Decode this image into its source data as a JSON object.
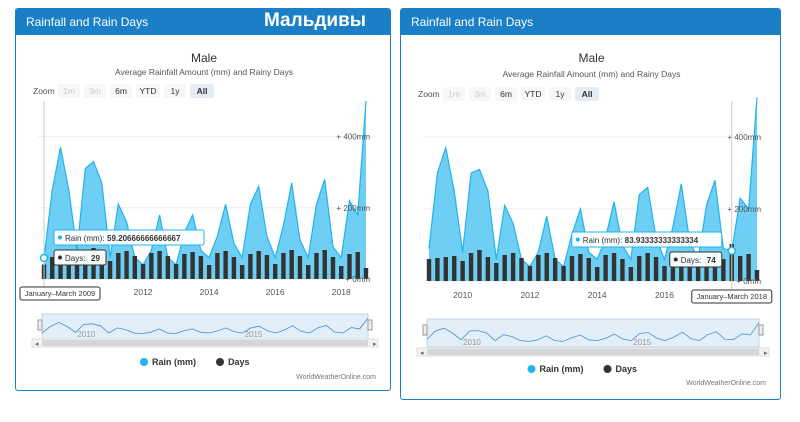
{
  "overlay_title": "Мальдивы",
  "colors": {
    "header": "#1a7fc7",
    "rain": "#21b4ec",
    "rain_fill": "#5fc9f2",
    "days": "#333333",
    "navigator_fill": "#cfe2f3"
  },
  "panels": [
    {
      "header": "Rainfall and Rain Days",
      "title": "Male",
      "subtitle": "Average Rainfall Amount (mm) and Rainy Days",
      "zoom_label": "Zoom",
      "zoom_buttons": [
        "1m",
        "3m",
        "6m",
        "YTD",
        "1y",
        "All"
      ],
      "active_zoom": "All",
      "y_ticks": [
        "+ 400mm",
        "+ 200mm",
        "+ 0mm"
      ],
      "x_ticks": [
        "2010",
        "2012",
        "2014",
        "2016",
        "2018"
      ],
      "nav_ticks": [
        "2010",
        "2015"
      ],
      "tooltip": {
        "rain_label": "Rain (mm):",
        "rain_value": "59.20666666666667",
        "days_label": "Days:",
        "days_value": "29",
        "date": "January–March 2009"
      },
      "legend": [
        "Rain (mm)",
        "Days"
      ],
      "credit": "WorldWeatherOnline.com"
    },
    {
      "header": "Rainfall and Rain Days",
      "title": "Male",
      "subtitle": "Average Rainfall Amount (mm) and Rainy Days",
      "zoom_label": "Zoom",
      "zoom_buttons": [
        "1m",
        "3m",
        "6m",
        "YTD",
        "1y",
        "All"
      ],
      "active_zoom": "All",
      "y_ticks": [
        "+ 400mm",
        "+ 200mm",
        "+ 0mm"
      ],
      "x_ticks": [
        "2010",
        "2012",
        "2014",
        "2016",
        "2018"
      ],
      "nav_ticks": [
        "2010",
        "2015"
      ],
      "tooltip": {
        "rain_label": "Rain (mm):",
        "rain_value": "83.93333333333334",
        "days_label": "Days:",
        "days_value": "74",
        "date": "January–March 2018"
      },
      "legend": [
        "Rain (mm)",
        "Days"
      ],
      "credit": "WorldWeatherOnline.com"
    }
  ],
  "chart_data": [
    {
      "type": "area",
      "title": "Male",
      "subtitle": "Average Rainfall Amount (mm) and Rainy Days",
      "x": [
        "Q1 2009",
        "Q2 2009",
        "Q3 2009",
        "Q4 2009",
        "Q1 2010",
        "Q2 2010",
        "Q3 2010",
        "Q4 2010",
        "Q1 2011",
        "Q2 2011",
        "Q3 2011",
        "Q4 2011",
        "Q1 2012",
        "Q2 2012",
        "Q3 2012",
        "Q4 2012",
        "Q1 2013",
        "Q2 2013",
        "Q3 2013",
        "Q4 2013",
        "Q1 2014",
        "Q2 2014",
        "Q3 2014",
        "Q4 2014",
        "Q1 2015",
        "Q2 2015",
        "Q3 2015",
        "Q4 2015",
        "Q1 2016",
        "Q2 2016",
        "Q3 2016",
        "Q4 2016",
        "Q1 2017",
        "Q2 2017",
        "Q3 2017",
        "Q4 2017",
        "Q1 2018",
        "Q2 2018",
        "Q3 2018",
        "Q4 2018"
      ],
      "series": [
        {
          "name": "Rain (mm)",
          "type": "area",
          "values": [
            59,
            250,
            370,
            250,
            80,
            310,
            330,
            270,
            60,
            210,
            160,
            60,
            40,
            80,
            180,
            60,
            40,
            130,
            180,
            80,
            60,
            120,
            210,
            100,
            60,
            210,
            260,
            120,
            60,
            150,
            270,
            110,
            60,
            210,
            280,
            90,
            60,
            220,
            180,
            500
          ]
        },
        {
          "name": "Days",
          "type": "column",
          "values": [
            29,
            44,
            48,
            50,
            40,
            56,
            62,
            48,
            36,
            52,
            56,
            46,
            30,
            52,
            56,
            46,
            30,
            50,
            54,
            46,
            28,
            52,
            56,
            44,
            28,
            50,
            56,
            48,
            30,
            52,
            58,
            46,
            28,
            52,
            58,
            44,
            26,
            50,
            54,
            22
          ]
        }
      ],
      "y_ticks": [
        "+ 0mm",
        "+ 200mm",
        "+ 400mm"
      ],
      "ylim": [
        0,
        500
      ],
      "legend": "bottom-center"
    },
    {
      "type": "area",
      "title": "Male",
      "subtitle": "Average Rainfall Amount (mm) and Rainy Days",
      "x": [
        "Q1 2009",
        "Q2 2009",
        "Q3 2009",
        "Q4 2009",
        "Q1 2010",
        "Q2 2010",
        "Q3 2010",
        "Q4 2010",
        "Q1 2011",
        "Q2 2011",
        "Q3 2011",
        "Q4 2011",
        "Q1 2012",
        "Q2 2012",
        "Q3 2012",
        "Q4 2012",
        "Q1 2013",
        "Q2 2013",
        "Q3 2013",
        "Q4 2013",
        "Q1 2014",
        "Q2 2014",
        "Q3 2014",
        "Q4 2014",
        "Q1 2015",
        "Q2 2015",
        "Q3 2015",
        "Q4 2015",
        "Q1 2016",
        "Q2 2016",
        "Q3 2016",
        "Q4 2016",
        "Q1 2017",
        "Q2 2017",
        "Q3 2017",
        "Q4 2017",
        "Q1 2018",
        "Q2 2018",
        "Q3 2018",
        "Q4 2018"
      ],
      "series": [
        {
          "name": "Rain (mm)",
          "type": "area",
          "values": [
            90,
            300,
            370,
            250,
            80,
            300,
            310,
            250,
            60,
            210,
            160,
            60,
            40,
            80,
            180,
            60,
            40,
            130,
            200,
            80,
            60,
            120,
            220,
            100,
            60,
            240,
            260,
            120,
            60,
            150,
            270,
            110,
            60,
            210,
            280,
            90,
            84,
            230,
            200,
            510
          ]
        },
        {
          "name": "Days",
          "type": "column",
          "values": [
            44,
            46,
            48,
            50,
            40,
            56,
            62,
            48,
            36,
            52,
            56,
            46,
            30,
            52,
            56,
            46,
            30,
            50,
            54,
            46,
            28,
            52,
            56,
            44,
            28,
            50,
            56,
            48,
            30,
            52,
            58,
            46,
            28,
            52,
            58,
            44,
            74,
            50,
            54,
            22
          ]
        }
      ],
      "y_ticks": [
        "+ 0mm",
        "+ 200mm",
        "+ 400mm"
      ],
      "ylim": [
        0,
        500
      ],
      "legend": "bottom-center"
    }
  ]
}
